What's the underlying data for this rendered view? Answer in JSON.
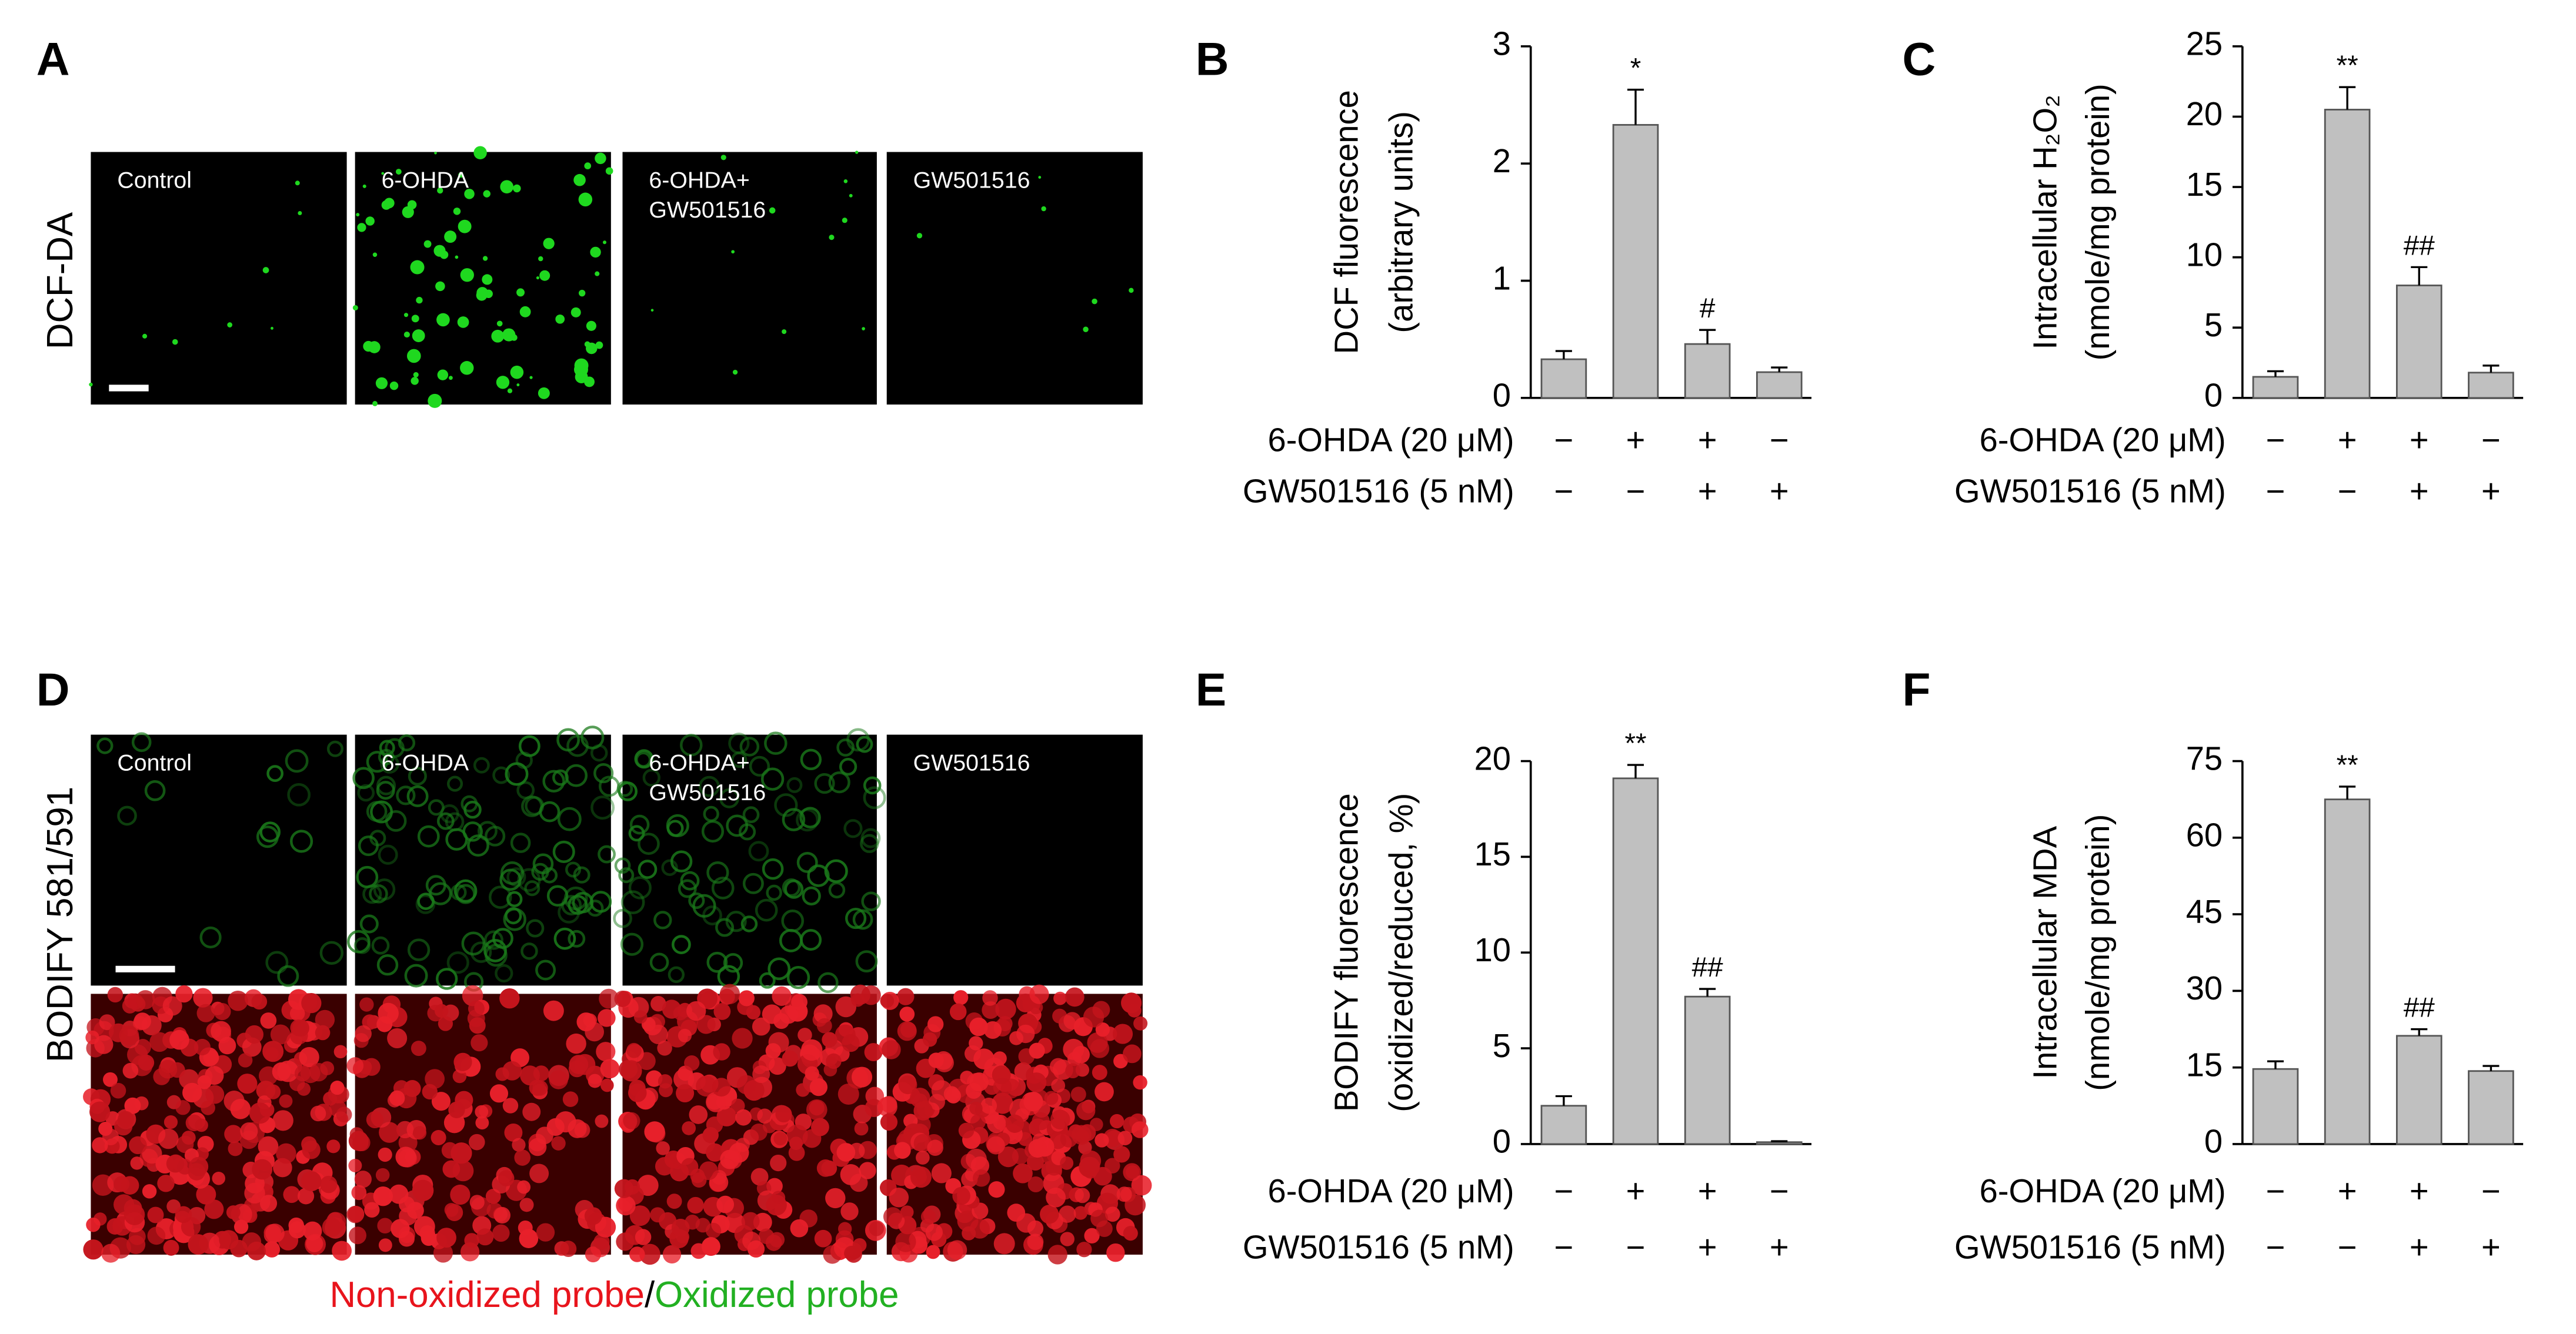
{
  "letters": [
    "A",
    "B",
    "C",
    "D",
    "E",
    "F"
  ],
  "image_panels": [
    {
      "row_label": "DCF-DA",
      "tiles": [
        [
          "Control"
        ],
        [
          "6-OHDA"
        ],
        [
          "6-OHDA+",
          "GW501516"
        ],
        [
          "GW501516"
        ]
      ]
    },
    {
      "row_label": "BODIFY 581/591",
      "tiles": [
        [
          "Control"
        ],
        [
          "6-OHDA"
        ],
        [
          "6-OHDA+",
          "GW501516"
        ],
        [
          "GW501516"
        ]
      ]
    }
  ],
  "caption": [
    "Non-oxidized probe",
    "/",
    "Oxidized probe"
  ],
  "chart_data": [
    {
      "type": "bar",
      "ylabel": [
        "DCF fluorescence",
        "(arbitrary units)"
      ],
      "color": "#c0c0c0",
      "values": [
        0.33,
        2.33,
        0.46,
        0.22
      ],
      "errors": [
        0.07,
        0.3,
        0.12,
        0.04
      ],
      "annotations": [
        null,
        "*",
        "#",
        null
      ],
      "ylim": [
        0,
        3
      ],
      "yticks": [
        0,
        1,
        2,
        3
      ],
      "conditions": [
        {
          "label": "6-OHDA (20 μM)",
          "signs": [
            "−",
            "+",
            "+",
            "−"
          ]
        },
        {
          "label": "GW501516 (5 nM)",
          "signs": [
            "−",
            "−",
            "+",
            "+"
          ]
        }
      ]
    },
    {
      "type": "bar",
      "ylabel": [
        "Intracellular H₂O₂",
        "(nmole/mg protein)"
      ],
      "color": "#c0c0c0",
      "values": [
        1.5,
        20.5,
        8.0,
        1.8
      ],
      "errors": [
        0.4,
        1.6,
        1.3,
        0.5
      ],
      "annotations": [
        null,
        "**",
        "##",
        null
      ],
      "ylim": [
        0,
        25
      ],
      "yticks": [
        0,
        5,
        10,
        15,
        20,
        25
      ],
      "conditions": [
        {
          "label": "6-OHDA (20 μM)",
          "signs": [
            "−",
            "+",
            "+",
            "−"
          ]
        },
        {
          "label": "GW501516 (5 nM)",
          "signs": [
            "−",
            "−",
            "+",
            "+"
          ]
        }
      ]
    },
    {
      "type": "bar",
      "ylabel": [
        "BODIFY fluorescence",
        "(oxidized/reduced, %)"
      ],
      "color": "#c0c0c0",
      "values": [
        2.0,
        19.1,
        7.7,
        0.1
      ],
      "errors": [
        0.5,
        0.7,
        0.4,
        0.05
      ],
      "annotations": [
        null,
        "**",
        "##",
        null
      ],
      "ylim": [
        0,
        20
      ],
      "yticks": [
        0,
        5,
        10,
        15,
        20
      ],
      "conditions": [
        {
          "label": "6-OHDA (20 μM)",
          "signs": [
            "−",
            "+",
            "+",
            "−"
          ]
        },
        {
          "label": "GW501516 (5 nM)",
          "signs": [
            "−",
            "−",
            "+",
            "+"
          ]
        }
      ]
    },
    {
      "type": "bar",
      "ylabel": [
        "Intracellular MDA",
        "(nmole/mg protein)"
      ],
      "color": "#c0c0c0",
      "values": [
        14.7,
        67.5,
        21.2,
        14.3
      ],
      "errors": [
        1.5,
        2.5,
        1.3,
        1.0
      ],
      "annotations": [
        null,
        "**",
        "##",
        null
      ],
      "ylim": [
        0,
        75
      ],
      "yticks": [
        0,
        15,
        30,
        45,
        60,
        75
      ],
      "conditions": [
        {
          "label": "6-OHDA (20 μM)",
          "signs": [
            "−",
            "+",
            "+",
            "−"
          ]
        },
        {
          "label": "GW501516 (5 nM)",
          "signs": [
            "−",
            "−",
            "+",
            "+"
          ]
        }
      ]
    }
  ]
}
